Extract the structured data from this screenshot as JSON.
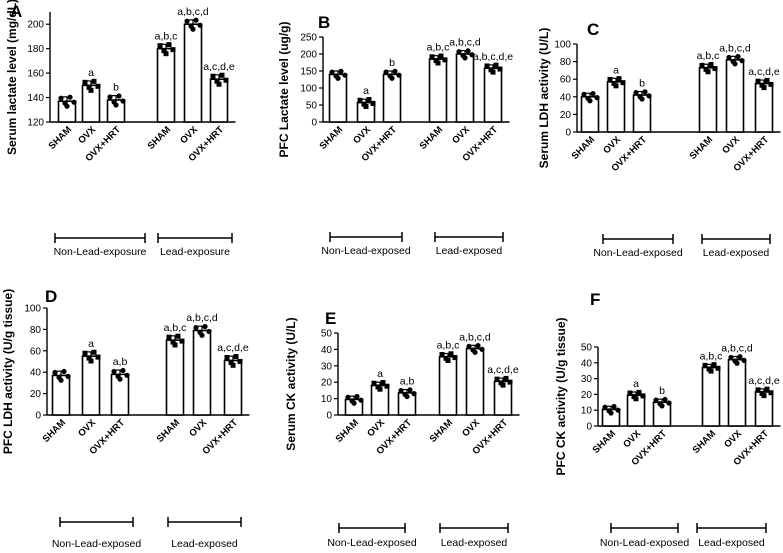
{
  "figure_title": "Six bar-chart panels (A–F) comparing SHAM, OVX and OVX+HRT groups with and without lead exposure",
  "chart_data": [
    {
      "type": "bar",
      "panel": "A",
      "ylabel": "Serum lactate level (mg/dL)",
      "ylim": [
        120,
        210
      ],
      "yticks": [
        120,
        140,
        160,
        180,
        200
      ],
      "categories": [
        "SHAM",
        "OVX",
        "OVX+HRT",
        "SHAM",
        "OVX",
        "OVX+HRT"
      ],
      "values": [
        137,
        150,
        138,
        180,
        200,
        155
      ],
      "sig_labels": [
        "",
        "a",
        "b",
        "a,b,c",
        "a,b,c,d",
        "a,c,d,e"
      ],
      "groups": [
        "Non-Lead-exposure",
        "Lead-exposure"
      ]
    },
    {
      "type": "bar",
      "panel": "B",
      "ylabel": "PFC Lactate level (ug/g)",
      "ylim": [
        0,
        250
      ],
      "yticks": [
        0,
        50,
        100,
        150,
        200,
        250
      ],
      "categories": [
        "SHAM",
        "OVX",
        "OVX+HRT",
        "SHAM",
        "OVX",
        "OVX+HRT"
      ],
      "values": [
        140,
        57,
        140,
        185,
        200,
        158
      ],
      "sig_labels": [
        "",
        "a",
        "b",
        "a,b,c",
        "a,b,c,d",
        "a,b,c,d,e"
      ],
      "groups": [
        "Non-Lead-exposed",
        "Lead-exposed"
      ]
    },
    {
      "type": "bar",
      "panel": "C",
      "ylabel": "Serum LDH activity (U/L)",
      "ylim": [
        0,
        100
      ],
      "yticks": [
        0,
        20,
        40,
        60,
        80,
        100
      ],
      "categories": [
        "SHAM",
        "OVX",
        "OVX+HRT",
        "SHAM",
        "OVX",
        "OVX+HRT"
      ],
      "values": [
        40,
        57,
        42,
        73,
        82,
        55
      ],
      "sig_labels": [
        "",
        "a",
        "b",
        "a,b,c",
        "a,b,c,d",
        "a,c,d,e"
      ],
      "groups": [
        "Non-Lead-exposed",
        "Lead-exposed"
      ]
    },
    {
      "type": "bar",
      "panel": "D",
      "ylabel": "PFC LDH activity (U/g tissue)",
      "ylim": [
        0,
        100
      ],
      "yticks": [
        0,
        20,
        40,
        60,
        80,
        100
      ],
      "categories": [
        "SHAM",
        "OVX",
        "OVX+HRT",
        "SHAM",
        "OVX",
        "OVX+HRT"
      ],
      "values": [
        37,
        55,
        38,
        70,
        79,
        51
      ],
      "sig_labels": [
        "",
        "a",
        "a,b",
        "a,b,c",
        "a,b,c,d",
        "a,c,d,e"
      ],
      "groups": [
        "Non-Lead-exposed",
        "Lead-exposed"
      ]
    },
    {
      "type": "bar",
      "panel": "E",
      "ylabel": "Serum CK activity (U/L)",
      "ylim": [
        0,
        50
      ],
      "yticks": [
        0,
        10,
        20,
        30,
        40,
        50
      ],
      "categories": [
        "SHAM",
        "OVX",
        "OVX+HRT",
        "SHAM",
        "OVX",
        "OVX+HRT"
      ],
      "values": [
        9.5,
        18,
        13.5,
        35.5,
        40.5,
        20.5
      ],
      "sig_labels": [
        "",
        "a",
        "a,b",
        "a,b,c",
        "a,b,c,d",
        "a,c,d,e"
      ],
      "groups": [
        "Non-Lead-exposed",
        "Lead-exposed"
      ]
    },
    {
      "type": "bar",
      "panel": "F",
      "ylabel": "PFC CK activity (U/g tissue)",
      "ylim": [
        0,
        50
      ],
      "yticks": [
        0,
        10,
        20,
        30,
        40,
        50
      ],
      "categories": [
        "SHAM",
        "OVX",
        "OVX+HRT",
        "SHAM",
        "OVX",
        "OVX+HRT"
      ],
      "values": [
        10.5,
        19.5,
        15,
        37,
        42,
        21.5
      ],
      "sig_labels": [
        "",
        "a",
        "b",
        "a,b,c",
        "a,b,c,d",
        "a,c,d,e"
      ],
      "groups": [
        "Non-Lead-exposed",
        "Lead-exposed"
      ]
    }
  ]
}
